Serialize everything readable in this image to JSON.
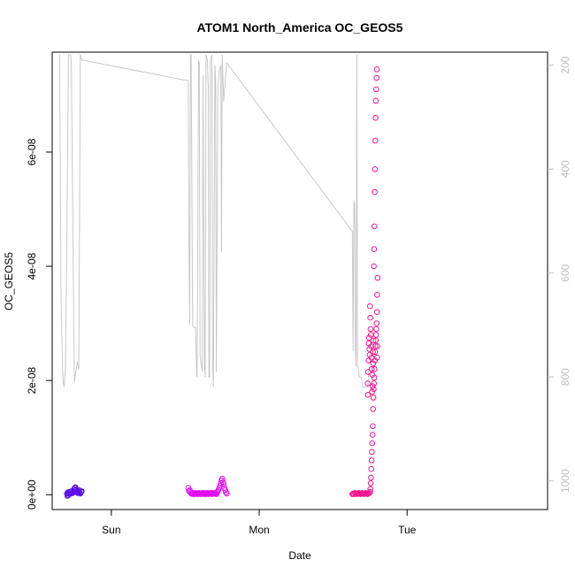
{
  "chart_data": {
    "type": "scatter",
    "title": "ATOM1 North_America OC_GEOS5",
    "xlabel": "Date",
    "ylabel": "OC_GEOS5",
    "x_ticks": [
      {
        "day": 1,
        "label": "Sun"
      },
      {
        "day": 2,
        "label": "Mon"
      },
      {
        "day": 3,
        "label": "Tue"
      }
    ],
    "xlim": [
      0.6,
      3.95
    ],
    "ylim": [
      -2.6e-09,
      7.75e-08
    ],
    "y_ticks": [
      {
        "value": 0,
        "label": "0e+00"
      },
      {
        "value": 2e-08,
        "label": "2e-08"
      },
      {
        "value": 4e-08,
        "label": "4e-08"
      },
      {
        "value": 6e-08,
        "label": "6e-08"
      }
    ],
    "y2_ticks": [
      {
        "value": 200,
        "label": "200"
      },
      {
        "value": 400,
        "label": "400"
      },
      {
        "value": 600,
        "label": "600"
      },
      {
        "value": 800,
        "label": "800"
      },
      {
        "value": 1000,
        "label": "1000"
      }
    ],
    "y2lim": [
      1055,
      175
    ],
    "colors": {
      "pressure_line": "#c8c8c8",
      "series1": "#5a10e8",
      "series2": "#e010f0",
      "series3": "#f01890"
    },
    "pressure_line": {
      "x": [
        0.65,
        0.66,
        0.67,
        0.675,
        0.68,
        0.69,
        0.7,
        0.71,
        0.72,
        0.725,
        0.73,
        0.74,
        0.75,
        0.76,
        0.765,
        0.77,
        0.78,
        0.79,
        0.8,
        1.52,
        1.525,
        1.53,
        1.535,
        1.54,
        1.55,
        1.56,
        1.57,
        1.575,
        1.58,
        1.59,
        1.595,
        1.6,
        1.61,
        1.615,
        1.62,
        1.63,
        1.635,
        1.64,
        1.65,
        1.655,
        1.66,
        1.665,
        1.67,
        1.68,
        1.685,
        1.69,
        1.7,
        1.705,
        1.71,
        1.72,
        1.725,
        1.73,
        1.74,
        1.745,
        1.75,
        1.76,
        1.77,
        1.78,
        2.63,
        2.635,
        2.64,
        2.645,
        2.65,
        2.655,
        2.66,
        2.665,
        2.67,
        2.675,
        2.68,
        2.685,
        2.69,
        2.7,
        2.71,
        2.72,
        2.73,
        2.735,
        2.74,
        2.745
      ],
      "y": [
        180,
        650,
        780,
        810,
        820,
        780,
        520,
        180,
        180,
        180,
        200,
        520,
        810,
        790,
        780,
        770,
        785,
        180,
        190,
        230,
        540,
        700,
        180,
        180,
        700,
        705,
        705,
        780,
        800,
        190,
        195,
        760,
        780,
        790,
        220,
        780,
        800,
        180,
        190,
        240,
        800,
        800,
        190,
        180,
        780,
        820,
        200,
        220,
        790,
        240,
        230,
        210,
        200,
        560,
        180,
        270,
        230,
        195,
        520,
        750,
        460,
        470,
        740,
        780,
        180,
        780,
        780,
        800,
        800,
        800,
        800,
        820,
        820,
        820,
        820,
        820,
        790,
        780
      ],
      "y_axis": "right",
      "pressure_unit": "hPa"
    },
    "series": [
      {
        "x": [
          0.7,
          0.706,
          0.712,
          0.718,
          0.724,
          0.73,
          0.736,
          0.742,
          0.748,
          0.754,
          0.76,
          0.766,
          0.772,
          0.778,
          0.784,
          0.79,
          0.796,
          0.703,
          0.715,
          0.727,
          0.739,
          0.751,
          0.763,
          0.775,
          0.787,
          0.799,
          0.709,
          0.733,
          0.757,
          0.781
        ],
        "y": [
          2e-10,
          4e-10,
          3e-10,
          5e-10,
          2e-10,
          6e-10,
          3e-10,
          4e-10,
          1e-09,
          1.2e-09,
          8e-10,
          5e-10,
          3e-10,
          6e-10,
          4e-10,
          2e-10,
          5e-10,
          -2e-10,
          1e-10,
          2e-10,
          3e-10,
          7e-10,
          9e-10,
          4e-10,
          3e-10,
          6e-10,
          -1e-10,
          3e-10,
          1.3e-09,
          8e-10
        ],
        "color": "#5a10e8"
      },
      {
        "x": [
          1.52,
          1.525,
          1.53,
          1.535,
          1.54,
          1.545,
          1.55,
          1.555,
          1.56,
          1.565,
          1.57,
          1.575,
          1.58,
          1.585,
          1.59,
          1.595,
          1.6,
          1.605,
          1.61,
          1.615,
          1.62,
          1.625,
          1.63,
          1.635,
          1.64,
          1.645,
          1.65,
          1.655,
          1.66,
          1.665,
          1.67,
          1.675,
          1.68,
          1.685,
          1.69,
          1.695,
          1.7,
          1.705,
          1.71,
          1.715,
          1.72,
          1.725,
          1.73,
          1.735,
          1.74,
          1.745,
          1.75,
          1.755,
          1.76,
          1.765,
          1.77,
          1.775,
          1.78
        ],
        "y": [
          1.2e-09,
          6e-10,
          8e-10,
          4e-10,
          2e-10,
          3e-10,
          1e-10,
          2e-10,
          3e-10,
          1e-10,
          2e-10,
          3e-10,
          2e-10,
          1e-10,
          2e-10,
          3e-10,
          2e-10,
          1e-10,
          2e-10,
          3e-10,
          2e-10,
          1e-10,
          3e-10,
          2e-10,
          1e-10,
          2e-10,
          3e-10,
          1e-10,
          2e-10,
          3e-10,
          2e-10,
          3e-10,
          1e-10,
          2e-10,
          3e-10,
          2e-10,
          3e-10,
          2e-10,
          1e-10,
          4e-10,
          6e-10,
          9e-10,
          1.2e-09,
          1.6e-09,
          2e-09,
          2.5e-09,
          2.8e-09,
          2.2e-09,
          1.8e-09,
          1.2e-09,
          8e-10,
          4e-10,
          2e-10
        ],
        "color": "#e010f0"
      },
      {
        "x": [
          2.63,
          2.636,
          2.642,
          2.648,
          2.654,
          2.66,
          2.666,
          2.672,
          2.678,
          2.684,
          2.69,
          2.696,
          2.702,
          2.708,
          2.714,
          2.72,
          2.726,
          2.732,
          2.738,
          2.744,
          2.75,
          2.752,
          2.754,
          2.756,
          2.758,
          2.76,
          2.762,
          2.764,
          2.766,
          2.768,
          2.77,
          2.772,
          2.774,
          2.776,
          2.778,
          2.78,
          2.782,
          2.784,
          2.786,
          2.788,
          2.79,
          2.792,
          2.794,
          2.796,
          2.798,
          2.8,
          2.775,
          2.777,
          2.779,
          2.781,
          2.783,
          2.785,
          2.787,
          2.789,
          2.791,
          2.793,
          2.795,
          2.797,
          2.799,
          2.773,
          2.771,
          2.769,
          2.767,
          2.765,
          2.763,
          2.761,
          2.759,
          2.757,
          2.755,
          2.753,
          2.751,
          2.749,
          2.747,
          2.745,
          2.743,
          2.741,
          2.739,
          2.737,
          2.735,
          2.733
        ],
        "y": [
          1e-10,
          2e-10,
          1e-10,
          3e-10,
          2e-10,
          1e-10,
          2e-10,
          3e-10,
          2e-10,
          1e-10,
          2e-10,
          3e-10,
          2e-10,
          1e-10,
          2e-10,
          3e-10,
          2e-10,
          1e-10,
          2e-10,
          3e-10,
          5e-10,
          1e-09,
          2e-09,
          3e-09,
          4.5e-09,
          6e-09,
          7.5e-09,
          9e-09,
          1.05e-08,
          1.2e-08,
          1.5e-08,
          1.7e-08,
          1.85e-08,
          1.95e-08,
          2.05e-08,
          2.2e-08,
          2.35e-08,
          2.5e-08,
          2.6e-08,
          2.7e-08,
          2.8e-08,
          2.9e-08,
          3e-08,
          3.2e-08,
          3.5e-08,
          3.8e-08,
          4e-08,
          4.3e-08,
          4.7e-08,
          5.3e-08,
          5.7e-08,
          6.2e-08,
          6.6e-08,
          6.9e-08,
          7.1e-08,
          7.3e-08,
          7.45e-08,
          2.4e-08,
          2.6e-08,
          2.7e-08,
          2.3e-08,
          2.5e-08,
          1.9e-08,
          2.1e-08,
          1.8e-08,
          2.2e-08,
          2.4e-08,
          2.6e-08,
          2.8e-08,
          2.9e-08,
          3.1e-08,
          3.3e-08,
          2.45e-08,
          2.55e-08,
          2.75e-08,
          2.65e-08,
          2.35e-08,
          2.15e-08,
          1.75e-08,
          1.95e-08
        ],
        "color": "#f01890"
      }
    ],
    "grid": false,
    "legend": "none"
  }
}
